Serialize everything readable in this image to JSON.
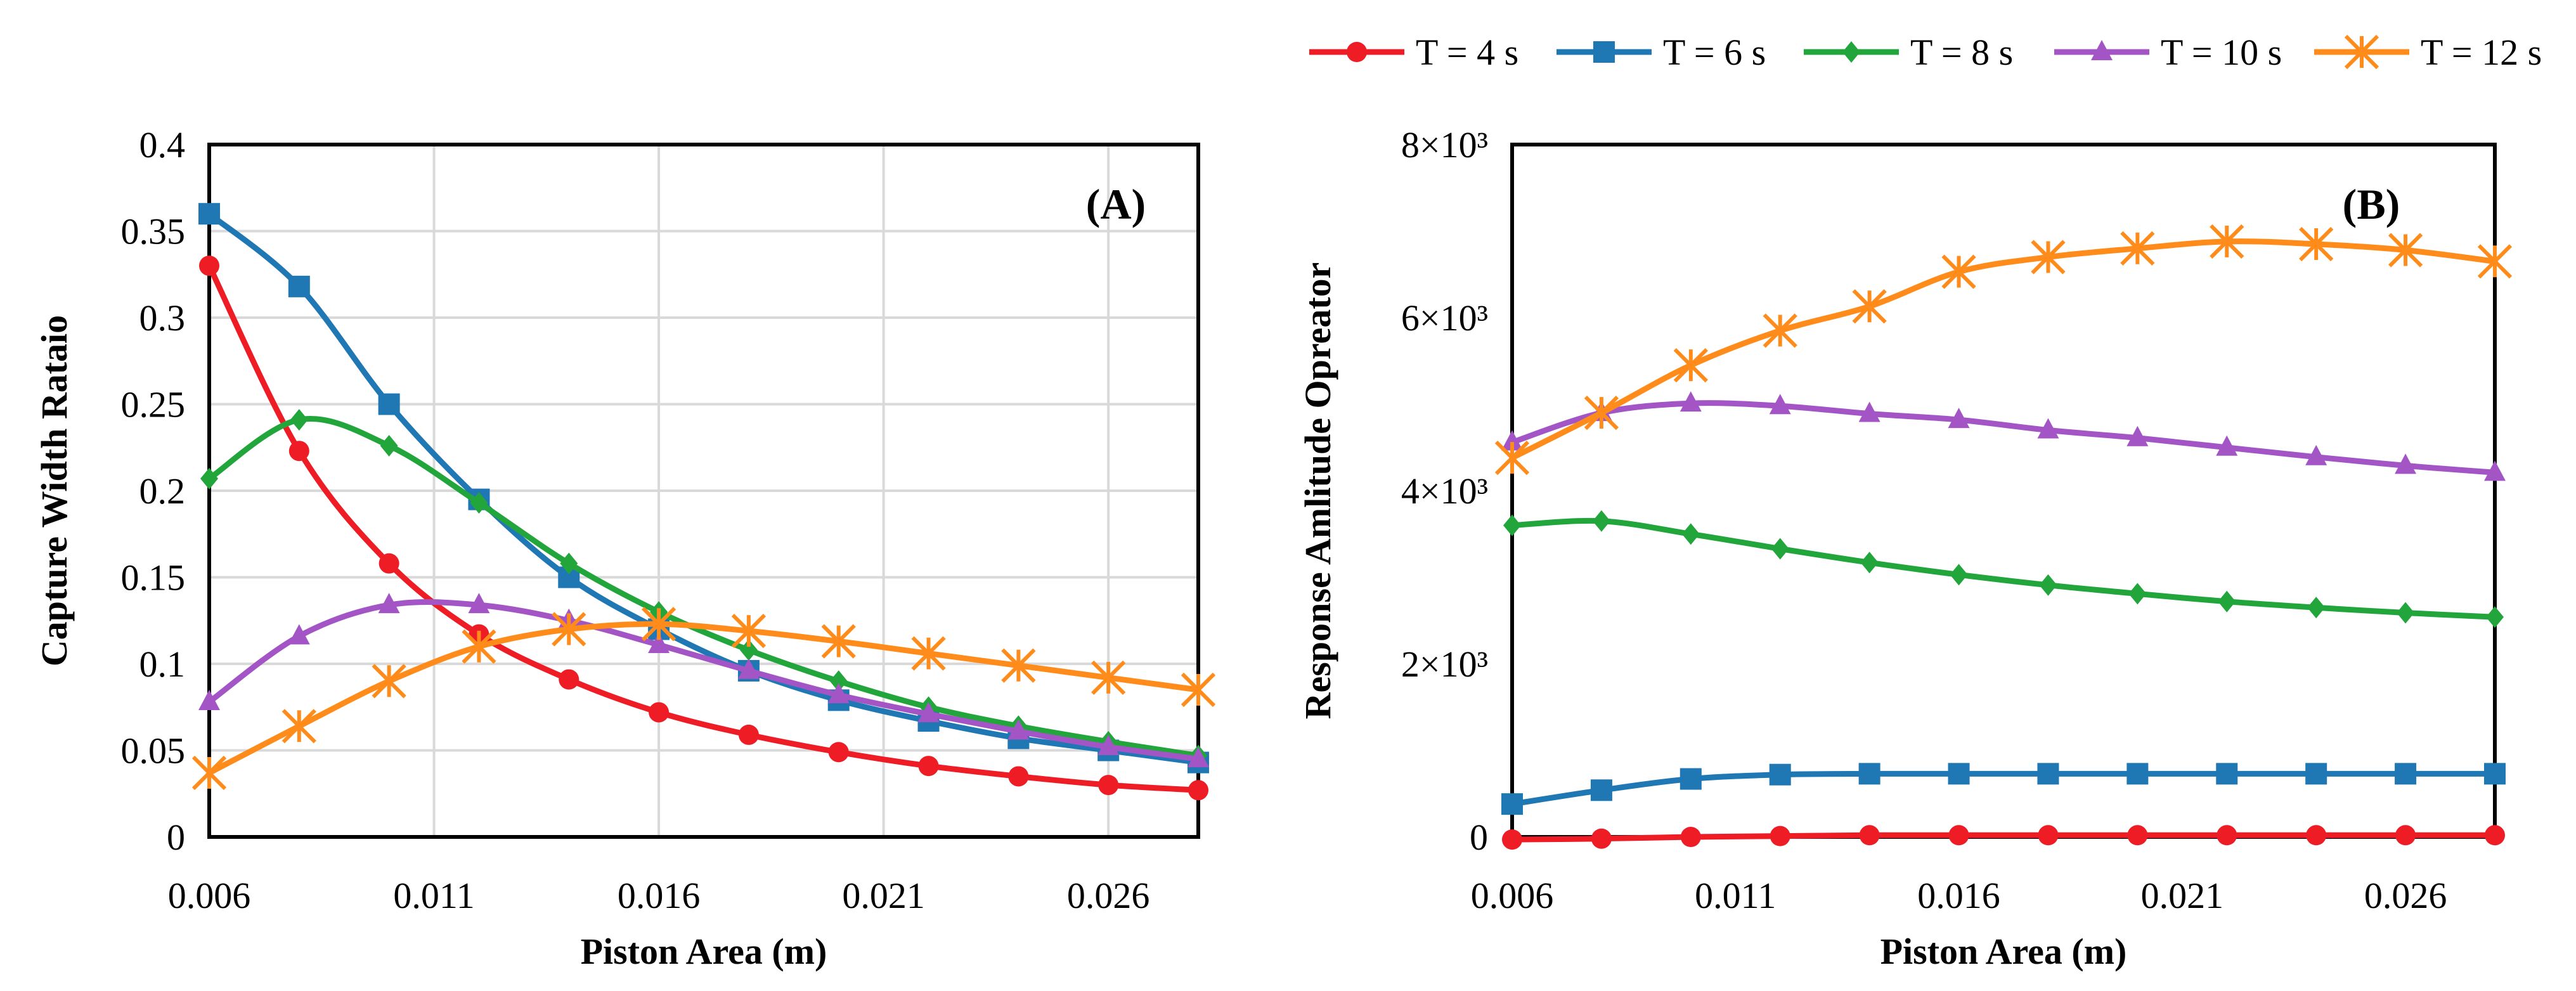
{
  "legend": {
    "entries": [
      {
        "label": "T = 4 s",
        "color": "#ee1c24",
        "marker": "circle"
      },
      {
        "label": "T = 6 s",
        "color": "#1f77b4",
        "marker": "square"
      },
      {
        "label": "T = 8 s",
        "color": "#22a63c",
        "marker": "diamond"
      },
      {
        "label": "T = 10 s",
        "color": "#a355c6",
        "marker": "triangle"
      },
      {
        "label": "T  = 12 s",
        "color": "#ff8c1a",
        "marker": "star"
      }
    ],
    "placement": "top-right"
  },
  "chart_data": [
    {
      "type": "line",
      "panel_label": "(A)",
      "xlabel": "Piston Area (m)",
      "ylabel": "Capture Width Rataio",
      "xlim": [
        0.006,
        0.028
      ],
      "ylim": [
        0,
        0.4
      ],
      "x_ticks": [
        0.006,
        0.011,
        0.016,
        0.021,
        0.026
      ],
      "x_tick_labels": [
        "0.006",
        "0.011",
        "0.016",
        "0.021",
        "0.026"
      ],
      "y_ticks": [
        0,
        0.05,
        0.1,
        0.15,
        0.2,
        0.25,
        0.3,
        0.35,
        0.4
      ],
      "y_tick_labels": [
        "0",
        "0.05",
        "0.1",
        "0.15",
        "0.2",
        "0.25",
        "0.3",
        "0.35",
        "0.4"
      ],
      "grid": true,
      "x": [
        0.006,
        0.008,
        0.01,
        0.012,
        0.014,
        0.016,
        0.018,
        0.02,
        0.022,
        0.024,
        0.026,
        0.028
      ],
      "series": [
        {
          "name": "T = 4 s",
          "values": [
            0.33,
            0.223,
            0.158,
            0.117,
            0.091,
            0.072,
            0.059,
            0.049,
            0.041,
            0.035,
            0.03,
            0.027
          ]
        },
        {
          "name": "T = 6 s",
          "values": [
            0.36,
            0.318,
            0.25,
            0.195,
            0.15,
            0.12,
            0.096,
            0.079,
            0.067,
            0.057,
            0.05,
            0.043
          ]
        },
        {
          "name": "T = 8 s",
          "values": [
            0.207,
            0.241,
            0.226,
            0.193,
            0.158,
            0.13,
            0.108,
            0.09,
            0.075,
            0.064,
            0.055,
            0.047
          ]
        },
        {
          "name": "T = 10 s",
          "values": [
            0.078,
            0.116,
            0.134,
            0.134,
            0.125,
            0.111,
            0.096,
            0.082,
            0.071,
            0.061,
            0.052,
            0.045
          ]
        },
        {
          "name": "T  = 12 s",
          "values": [
            0.037,
            0.064,
            0.09,
            0.11,
            0.12,
            0.123,
            0.119,
            0.113,
            0.106,
            0.099,
            0.092,
            0.085
          ]
        }
      ]
    },
    {
      "type": "line",
      "panel_label": "(B)",
      "xlabel": "Piston Area (m)",
      "ylabel": "Response Amlitude Opreator",
      "xlim": [
        0.006,
        0.028
      ],
      "ylim": [
        0,
        8000
      ],
      "x_ticks": [
        0.006,
        0.011,
        0.016,
        0.021,
        0.026
      ],
      "x_tick_labels": [
        "0.006",
        "0.011",
        "0.016",
        "0.021",
        "0.026"
      ],
      "y_ticks": [
        0,
        2000,
        4000,
        6000,
        8000
      ],
      "y_tick_labels": [
        "0",
        "2×10³",
        "4×10³",
        "6×10³",
        "8×10³"
      ],
      "grid": false,
      "x": [
        0.006,
        0.008,
        0.01,
        0.012,
        0.014,
        0.016,
        0.018,
        0.02,
        0.022,
        0.024,
        0.026,
        0.028
      ],
      "series": [
        {
          "name": "T = 4 s",
          "values": [
            -30,
            -20,
            0,
            10,
            20,
            20,
            20,
            20,
            20,
            20,
            20,
            20
          ]
        },
        {
          "name": "T = 6 s",
          "values": [
            380,
            540,
            670,
            720,
            730,
            730,
            730,
            730,
            730,
            730,
            730,
            730
          ]
        },
        {
          "name": "T = 8 s",
          "values": [
            3600,
            3650,
            3500,
            3330,
            3170,
            3030,
            2910,
            2810,
            2720,
            2650,
            2590,
            2540
          ]
        },
        {
          "name": "T = 10 s",
          "values": [
            4560,
            4900,
            5010,
            4980,
            4890,
            4820,
            4700,
            4610,
            4500,
            4390,
            4290,
            4210
          ]
        },
        {
          "name": "T  = 12 s",
          "values": [
            4380,
            4900,
            5450,
            5850,
            6130,
            6530,
            6700,
            6800,
            6880,
            6850,
            6780,
            6650
          ]
        }
      ]
    }
  ]
}
